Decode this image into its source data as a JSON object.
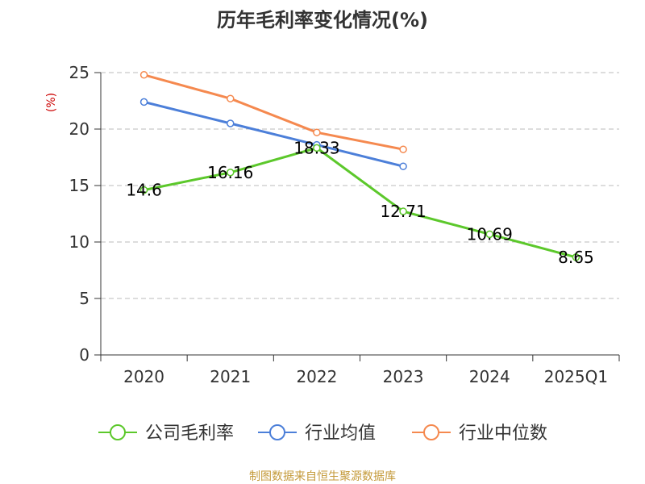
{
  "chart_data": {
    "type": "line",
    "title": "历年毛利率变化情况(%)",
    "ylabel": "(%)",
    "xlabel": "",
    "categories": [
      "2020",
      "2021",
      "2022",
      "2023",
      "2024",
      "2025Q1"
    ],
    "ylim": [
      0,
      25
    ],
    "yticks": [
      0,
      5,
      10,
      15,
      20,
      25
    ],
    "grid": true,
    "legend_position": "bottom",
    "series": [
      {
        "name": "公司毛利率",
        "color": "#5cc82b",
        "values": [
          14.6,
          16.16,
          18.33,
          12.71,
          10.69,
          8.65
        ],
        "labels": [
          "14.6",
          "16.16",
          "18.33",
          "12.71",
          "10.69",
          "8.65"
        ]
      },
      {
        "name": "行业均值",
        "color": "#4c7fd9",
        "values": [
          22.4,
          20.5,
          18.6,
          16.7,
          null,
          null
        ]
      },
      {
        "name": "行业中位数",
        "color": "#f5894f",
        "values": [
          24.8,
          22.7,
          19.7,
          18.2,
          null,
          null
        ]
      }
    ],
    "source": "制图数据来自恒生聚源数据库"
  }
}
